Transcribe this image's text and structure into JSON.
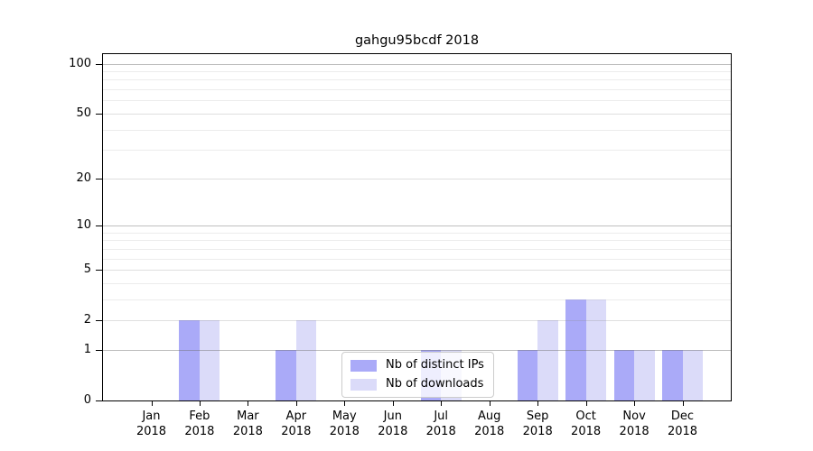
{
  "chart_data": {
    "type": "bar",
    "title": "gahgu95bcdf 2018",
    "categories": [
      "Jan",
      "Feb",
      "Mar",
      "Apr",
      "May",
      "Jun",
      "Jul",
      "Aug",
      "Sep",
      "Oct",
      "Nov",
      "Dec"
    ],
    "category_year": "2018",
    "series": [
      {
        "name": "Nb of distinct IPs",
        "color": "#aaaaf8",
        "values": [
          0,
          2,
          0,
          1,
          0,
          0,
          1,
          0,
          1,
          3,
          1,
          1
        ]
      },
      {
        "name": "Nb of downloads",
        "color": "#dbdbf9",
        "values": [
          0,
          2,
          0,
          2,
          0,
          0,
          1,
          0,
          2,
          3,
          1,
          1
        ]
      }
    ],
    "y_axis": {
      "scale": "log1p",
      "ylim": [
        0,
        114
      ],
      "tick_values": [
        0,
        1,
        2,
        5,
        10,
        20,
        50,
        100
      ],
      "gridlines": {
        "major": [
          1,
          10,
          100
        ],
        "mid": [
          2,
          5,
          20,
          50
        ],
        "minor": [
          3,
          4,
          6,
          7,
          8,
          9,
          30,
          40,
          60,
          70,
          80,
          90
        ]
      }
    },
    "legend": {
      "position": "lower-center-left"
    },
    "grid": true,
    "axis_color": "#000000",
    "background_color": "#ffffff"
  }
}
